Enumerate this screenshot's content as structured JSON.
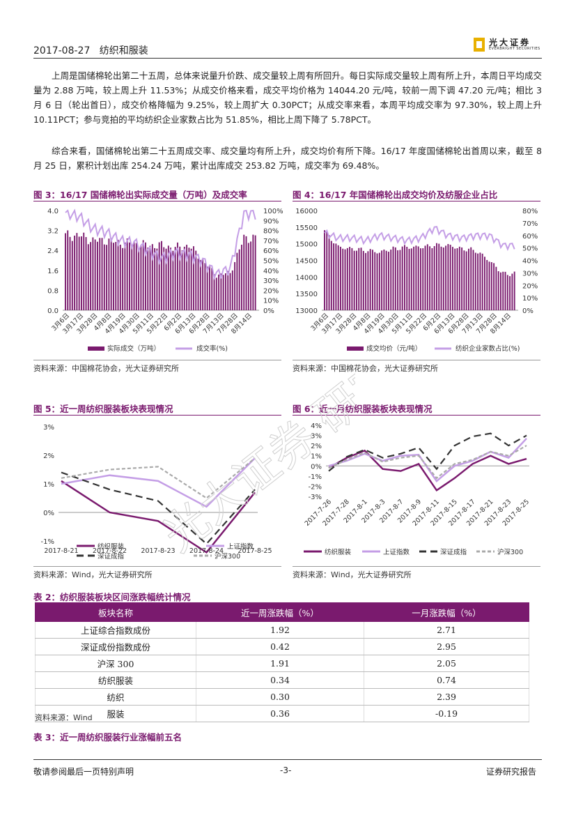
{
  "header": {
    "date": "2017-08-27",
    "title": "纺织和服装",
    "logo_cn": "光大证券",
    "logo_en": "EVERBRIGHT SECURITIES"
  },
  "paragraphs": [
    "上周是国储棉轮出第二十五周，总体来说量升价跌、成交量较上周有所回升。每日实际成交量较上周有所上升，本周日平均成交量为 2.88 万吨，较上周上升 11.53%；从成交价格来看，成交平均价格为 14044.20 元/吨，较前一周下调 47.20 元/吨；相比 3 月 6 日（轮出首日），成交价格降幅为 9.25%，较上周扩大 0.30PCT；从成交率来看，本周平均成交率为 97.30%，较上周上升 10.11PCT；参与竞拍的平均纺织企业家数占比为 51.85%，相比上周下降了 5.78PCT。",
    "综合来看，国储棉轮出第二十五周成交率、成交量均有所上升，成交均价有所下降。16/17 年度国储棉轮出首周以来，截至 8 月 25 日，累积计划出库 254.24 万吨，累计出库成交 253.82 万吨，成交率为 69.48%。"
  ],
  "figures": {
    "fig3_title": "图 3：16/17 国储棉轮出实际成交量（万吨）及成交率",
    "fig4_title": "图 4：16/17 年国储棉轮出成交均价及纺服企业占比",
    "fig5_title": "图 5：近一周纺织服装板块表现情况",
    "fig6_title": "图 6：近一月纺织服装板块表现情况",
    "src_cotton": "资料来源：中国棉花协会，光大证券研究所",
    "src_wind": "资料来源：Wind，光大证券研究所"
  },
  "colors": {
    "purple": "#7a1a6e",
    "lilac": "#c49ee6",
    "dark": "#333333",
    "gray": "#aaaaaa"
  },
  "chart_data": [
    {
      "id": "fig3",
      "type": "bar+line",
      "categories": [
        "3月6日",
        "3月17日",
        "3月28日",
        "4月8日",
        "4月19日",
        "4月30日",
        "5月11日",
        "5月22日",
        "6月2日",
        "6月13日",
        "6月28日",
        "7月13日",
        "7月28日",
        "8月14日"
      ],
      "left_ticks": [
        "4.0",
        "3.2",
        "2.4",
        "1.6",
        "0.8",
        "0.0"
      ],
      "right_ticks": [
        "100%",
        "90%",
        "80%",
        "70%",
        "60%",
        "50%",
        "40%",
        "30%",
        "20%",
        "10%",
        "0%"
      ],
      "ylim_left": [
        0,
        4.0
      ],
      "ylim_right": [
        0,
        100
      ],
      "series": [
        {
          "name": "实际成交（万吨）",
          "axis": "left",
          "values": [
            3.0,
            3.0,
            2.8,
            2.8,
            2.7,
            2.7,
            2.6,
            2.6,
            2.5,
            2.6,
            2.0,
            1.4,
            1.5,
            2.9
          ]
        },
        {
          "name": "成交率(%)",
          "axis": "right",
          "values": [
            98,
            94,
            82,
            78,
            70,
            68,
            60,
            52,
            58,
            56,
            50,
            36,
            42,
            97
          ]
        }
      ]
    },
    {
      "id": "fig4",
      "type": "bar+line",
      "categories": [
        "3月6日",
        "3月17日",
        "3月28日",
        "4月8日",
        "4月19日",
        "4月30日",
        "5月11日",
        "5月22日",
        "6月2日",
        "6月13日",
        "6月28日",
        "7月13日",
        "7月28日",
        "8月14日"
      ],
      "left_ticks": [
        "16000",
        "15500",
        "15000",
        "14500",
        "14000",
        "13500",
        "13000"
      ],
      "right_ticks": [
        "80%",
        "70%",
        "60%",
        "50%",
        "40%",
        "30%",
        "20%",
        "10%",
        "0%"
      ],
      "ylim_left": [
        13000,
        16000
      ],
      "ylim_right": [
        0,
        80
      ],
      "series": [
        {
          "name": "成交均价（元/吨）",
          "axis": "left",
          "values": [
            15400,
            14900,
            14850,
            14800,
            14750,
            14850,
            14900,
            14900,
            14950,
            14950,
            14850,
            14800,
            14500,
            14100
          ]
        },
        {
          "name": "纺织企业家数占比(%)",
          "axis": "right",
          "values": [
            62,
            58,
            58,
            56,
            60,
            58,
            56,
            58,
            66,
            60,
            58,
            60,
            60,
            52
          ]
        }
      ]
    },
    {
      "id": "fig5",
      "type": "line",
      "categories": [
        "2017-8-21",
        "2017-8-22",
        "2017-8-23",
        "2017-8-24",
        "2017-8-25"
      ],
      "ticks": [
        "3%",
        "2%",
        "1%",
        "0%",
        "-1%"
      ],
      "ylim": [
        -1,
        3
      ],
      "series": [
        {
          "name": "纺织服装",
          "values": [
            1.1,
            0.0,
            -0.3,
            -1.4,
            0.7
          ]
        },
        {
          "name": "上证指数",
          "values": [
            1.0,
            1.3,
            1.1,
            0.2,
            1.9
          ]
        },
        {
          "name": "深证成指",
          "values": [
            1.4,
            0.8,
            0.4,
            -1.1,
            0.8
          ]
        },
        {
          "name": "沪深300",
          "values": [
            1.2,
            1.5,
            1.6,
            0.5,
            1.9
          ]
        }
      ]
    },
    {
      "id": "fig6",
      "type": "line",
      "categories": [
        "2017-7-26",
        "2017-7-28",
        "2017-8-1",
        "2017-8-3",
        "2017-8-7",
        "2017-8-9",
        "2017-8-11",
        "2017-8-15",
        "2017-8-17",
        "2017-8-21",
        "2017-8-23",
        "2017-8-25"
      ],
      "ticks": [
        "4%",
        "3%",
        "2%",
        "1%",
        "0%",
        "-1%",
        "-2%",
        "-3%"
      ],
      "ylim": [
        -3,
        4
      ],
      "series": [
        {
          "name": "纺织服装",
          "values": [
            -0.2,
            0.8,
            1.5,
            -0.3,
            -0.5,
            0.2,
            -2.4,
            -1.2,
            0.2,
            1.0,
            0.2,
            0.7
          ]
        },
        {
          "name": "上证指数",
          "values": [
            0.0,
            0.5,
            1.2,
            0.5,
            1.0,
            1.1,
            -1.5,
            0.0,
            0.5,
            1.4,
            0.8,
            2.7
          ]
        },
        {
          "name": "深证成指",
          "values": [
            -0.5,
            0.9,
            1.6,
            0.8,
            1.2,
            1.8,
            -0.3,
            2.0,
            2.9,
            3.2,
            2.0,
            3.0
          ]
        },
        {
          "name": "沪深300",
          "values": [
            -0.2,
            0.6,
            1.3,
            0.4,
            0.8,
            1.0,
            -1.2,
            0.2,
            0.6,
            1.4,
            1.0,
            2.0
          ]
        }
      ]
    }
  ],
  "table2": {
    "title": "表 2：纺织服装板块区间涨跌幅统计情况",
    "headers": [
      "板块名称",
      "近一周涨跌幅（%）",
      "一月涨跌幅（%）"
    ],
    "rows": [
      [
        "上证综合指数成份",
        "1.92",
        "2.71"
      ],
      [
        "深证成份指数成份",
        "0.42",
        "2.95"
      ],
      [
        "沪深 300",
        "1.91",
        "2.05"
      ],
      [
        "纺织服装",
        "0.34",
        "0.74"
      ],
      [
        "纺织",
        "0.30",
        "2.39"
      ],
      [
        "服装",
        "0.36",
        "-0.19"
      ]
    ],
    "source": "资料来源：Wind"
  },
  "table3_title": "表 3：近一周纺织服装行业涨幅前五名",
  "footer": {
    "left": "敬请参阅最后一页特别声明",
    "page": "-3-",
    "right": "证券研究报告"
  },
  "watermark": "光大证券 研究"
}
